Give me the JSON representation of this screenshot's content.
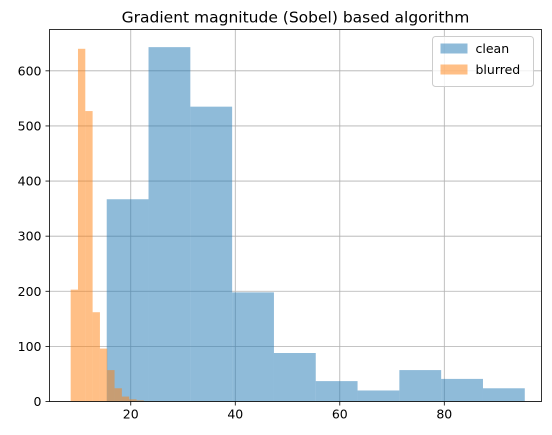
{
  "chart_data": {
    "type": "histogram",
    "title": "Gradient magnitude (Sobel) based algorithm",
    "xlabel": "",
    "ylabel": "",
    "xlim": [
      4.45,
      98.6
    ],
    "ylim": [
      0,
      675
    ],
    "xticks": [
      20,
      40,
      60,
      80
    ],
    "yticks": [
      0,
      100,
      200,
      300,
      400,
      500,
      600
    ],
    "grid": true,
    "legend_position": "top-right",
    "series": [
      {
        "name": "clean",
        "color": "#1f77b4",
        "alpha": 0.5,
        "bins": [
          {
            "x0": 15.4,
            "x1": 23.4,
            "count": 367
          },
          {
            "x0": 23.4,
            "x1": 31.4,
            "count": 643
          },
          {
            "x0": 31.4,
            "x1": 39.4,
            "count": 535
          },
          {
            "x0": 39.4,
            "x1": 47.4,
            "count": 198
          },
          {
            "x0": 47.4,
            "x1": 55.4,
            "count": 88
          },
          {
            "x0": 55.4,
            "x1": 63.4,
            "count": 37
          },
          {
            "x0": 63.4,
            "x1": 71.4,
            "count": 20
          },
          {
            "x0": 71.4,
            "x1": 79.4,
            "count": 57
          },
          {
            "x0": 79.4,
            "x1": 87.4,
            "count": 41
          },
          {
            "x0": 87.4,
            "x1": 95.4,
            "count": 24
          }
        ]
      },
      {
        "name": "blurred",
        "color": "#ff7f0e",
        "alpha": 0.5,
        "bins": [
          {
            "x0": 8.5,
            "x1": 9.9,
            "count": 203
          },
          {
            "x0": 9.9,
            "x1": 11.3,
            "count": 640
          },
          {
            "x0": 11.3,
            "x1": 12.7,
            "count": 527
          },
          {
            "x0": 12.7,
            "x1": 14.1,
            "count": 162
          },
          {
            "x0": 14.1,
            "x1": 15.5,
            "count": 96
          },
          {
            "x0": 15.5,
            "x1": 16.9,
            "count": 57
          },
          {
            "x0": 16.9,
            "x1": 18.3,
            "count": 24
          },
          {
            "x0": 18.3,
            "x1": 19.7,
            "count": 9
          },
          {
            "x0": 19.7,
            "x1": 21.1,
            "count": 4
          },
          {
            "x0": 21.1,
            "x1": 22.5,
            "count": 2
          }
        ]
      }
    ]
  }
}
